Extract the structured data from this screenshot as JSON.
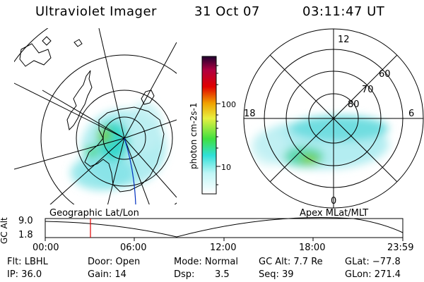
{
  "header": {
    "instrument": "Ultraviolet Imager",
    "date": "31 Oct 07",
    "time": "03:11:47 UT"
  },
  "left_map": {
    "label": "Geographic Lat/Lon"
  },
  "right_map": {
    "label": "Apex  MLat/MLT",
    "mlt_labels": [
      "12",
      "18",
      "6",
      "0"
    ],
    "lat_labels": [
      "60",
      "70",
      "80"
    ]
  },
  "colorbar": {
    "unit_label": "photon cm-2s-1",
    "tick_labels": [
      "100",
      "10"
    ],
    "scale": "log"
  },
  "altitude_plot": {
    "ylabel": "GC Alt",
    "y_ticks": [
      "9.0",
      "1.8"
    ],
    "x_ticks": [
      "00:00",
      "06:00",
      "12:00",
      "18:00",
      "23:59"
    ],
    "marker_color": "#e00000"
  },
  "info": {
    "flt": "Flt: LBHL",
    "ip": "IP: 36.0",
    "door": "Door: Open",
    "gain": "Gain: 14",
    "mode": "Mode: Normal",
    "dsp_label": "Dsp:",
    "dsp_value": "3.5",
    "gc_alt": "GC Alt: 7.7 Re",
    "seq": "Seq: 39",
    "glat": "GLat: −77.8",
    "glon": "GLon: 271.4"
  }
}
